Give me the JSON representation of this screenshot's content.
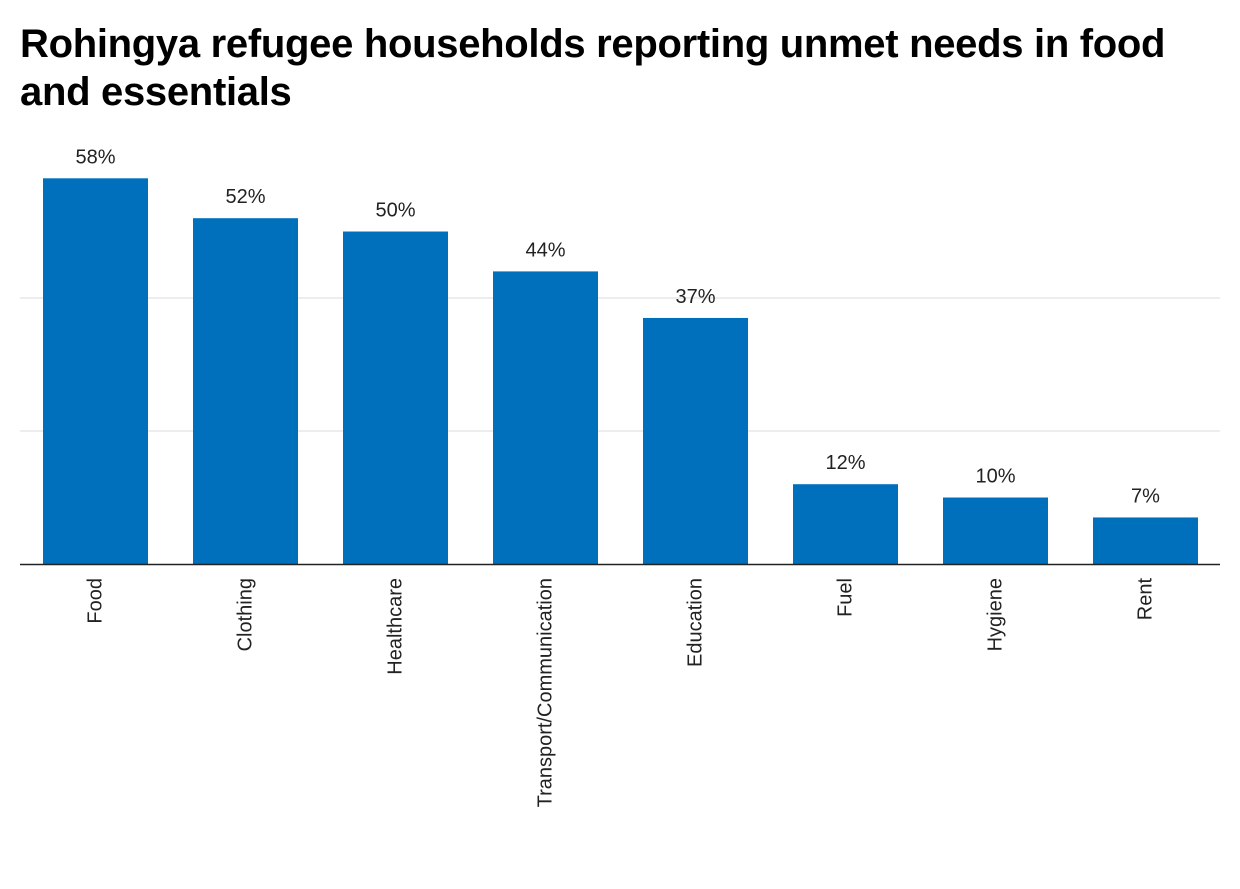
{
  "colors": {
    "bar": "#0070bd",
    "grid": "#e2e2e2",
    "axis": "#222222"
  },
  "chart_data": {
    "type": "bar",
    "title": "Rohingya refugee households reporting unmet needs in food and essentials",
    "xlabel": "",
    "ylabel": "",
    "ylim": [
      0,
      60
    ],
    "gridlines": [
      20,
      40
    ],
    "value_suffix": "%",
    "categories": [
      "Food",
      "Clothing",
      "Healthcare",
      "Transport/Communication",
      "Education",
      "Fuel",
      "Hygiene",
      "Rent"
    ],
    "values": [
      58,
      52,
      50,
      44,
      37,
      12,
      10,
      7
    ],
    "labels": [
      "58%",
      "52%",
      "50%",
      "44%",
      "37%",
      "12%",
      "10%",
      "7%"
    ]
  }
}
